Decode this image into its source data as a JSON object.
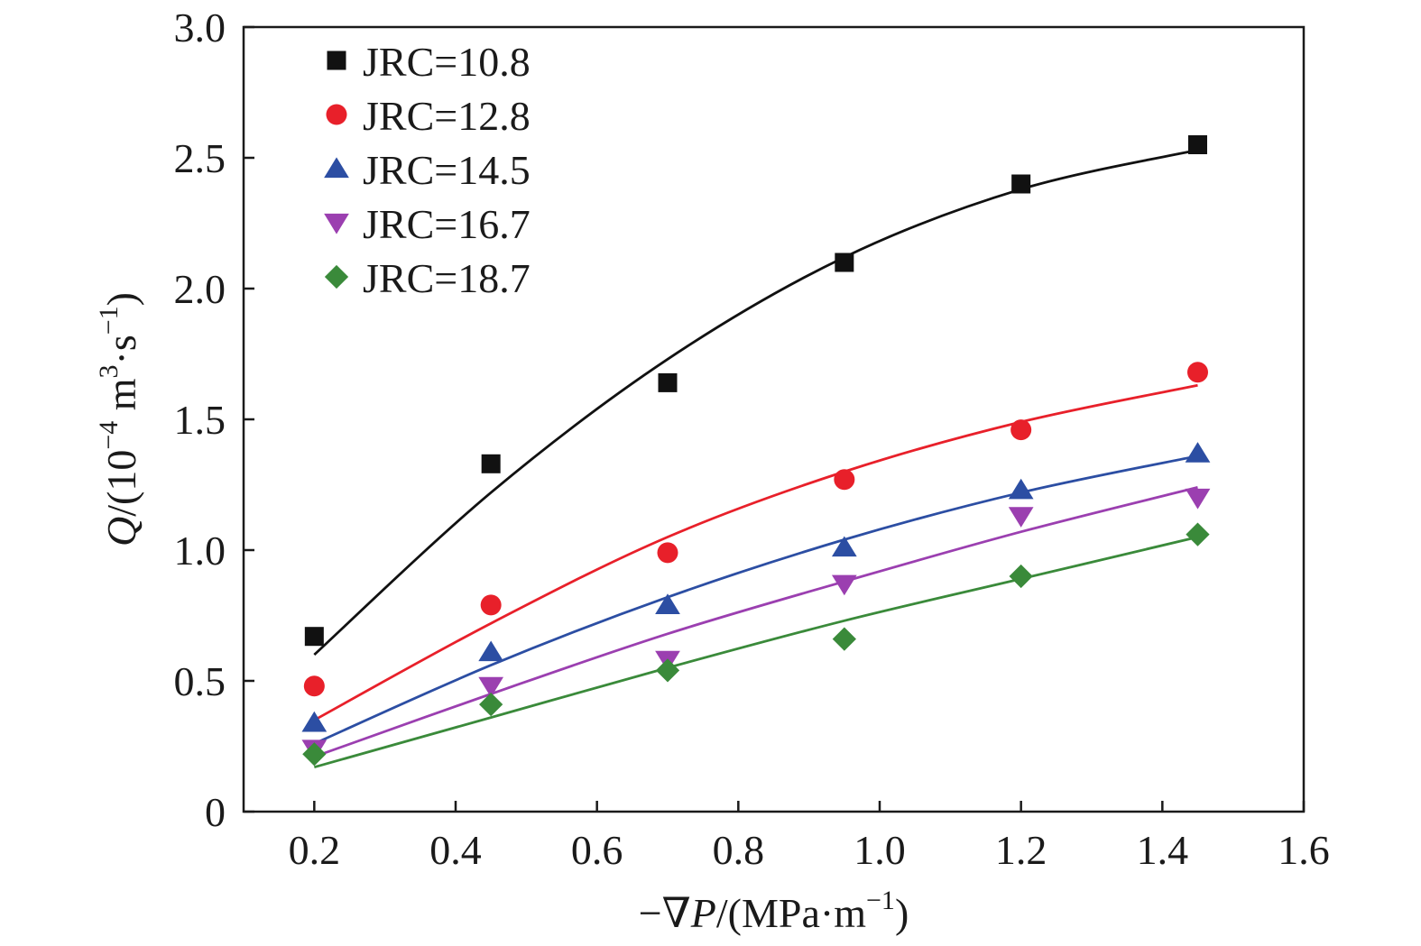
{
  "chart_data": {
    "type": "scatter",
    "xlabel": {
      "prefix": "−∇",
      "var": "P",
      "unit_pre": "/(MPa·m",
      "sup": "−1",
      "unit_post": ")"
    },
    "ylabel": {
      "var": "Q",
      "unit_pre": "/(10",
      "sup1": "−4",
      "mid": " m",
      "sup2": "3",
      "mid2": "·s",
      "sup3": "−1",
      "unit_post": ")"
    },
    "xlim": [
      0.1,
      1.6
    ],
    "ylim": [
      0,
      3.0
    ],
    "xticks": [
      0.2,
      0.4,
      0.6,
      0.8,
      1.0,
      1.2,
      1.4,
      1.6
    ],
    "xtick_labels": [
      "0.2",
      "0.4",
      "0.6",
      "0.8",
      "1.0",
      "1.2",
      "1.4",
      "1.6"
    ],
    "yticks": [
      0,
      0.5,
      1.0,
      1.5,
      2.0,
      2.5,
      3.0
    ],
    "ytick_labels": [
      "0",
      "0.5",
      "1.0",
      "1.5",
      "2.0",
      "2.5",
      "3.0"
    ],
    "legend_position": "top-left",
    "x": [
      0.2,
      0.45,
      0.7,
      0.95,
      1.2,
      1.45
    ],
    "series": [
      {
        "name": "JRC=10.8",
        "marker": "square",
        "color": "#111111",
        "line_color": "#111111",
        "values": [
          0.67,
          1.33,
          1.64,
          2.1,
          2.4,
          2.55
        ],
        "fit": [
          0.6,
          1.22,
          1.73,
          2.12,
          2.38,
          2.53
        ]
      },
      {
        "name": "JRC=12.8",
        "marker": "circle",
        "color": "#e8202a",
        "line_color": "#e8202a",
        "values": [
          0.48,
          0.79,
          0.99,
          1.27,
          1.46,
          1.68
        ],
        "fit": [
          0.35,
          0.72,
          1.05,
          1.3,
          1.49,
          1.63
        ]
      },
      {
        "name": "JRC=14.5",
        "marker": "triangle-up",
        "color": "#2c4ea3",
        "line_color": "#2c4ea3",
        "values": [
          0.34,
          0.61,
          0.79,
          1.01,
          1.23,
          1.37
        ],
        "fit": [
          0.26,
          0.56,
          0.82,
          1.04,
          1.22,
          1.36
        ]
      },
      {
        "name": "JRC=16.7",
        "marker": "triangle-down",
        "color": "#9b3fb0",
        "line_color": "#9b3fb0",
        "values": [
          0.24,
          0.48,
          0.58,
          0.87,
          1.13,
          1.2
        ],
        "fit": [
          0.21,
          0.45,
          0.68,
          0.88,
          1.07,
          1.24
        ]
      },
      {
        "name": "JRC=18.7",
        "marker": "diamond",
        "color": "#3a8a3a",
        "line_color": "#3a8a3a",
        "values": [
          0.22,
          0.41,
          0.54,
          0.66,
          0.9,
          1.06
        ],
        "fit": [
          0.17,
          0.36,
          0.55,
          0.73,
          0.89,
          1.05
        ]
      }
    ]
  }
}
